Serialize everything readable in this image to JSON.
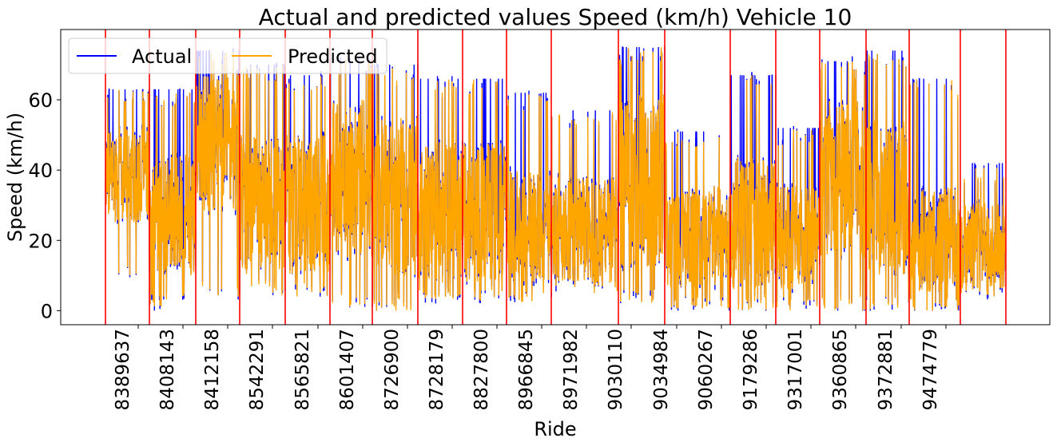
{
  "chart_data": {
    "type": "line",
    "title": "Actual and predicted values Speed (km/h) Vehicle 10",
    "xlabel": "Ride",
    "ylabel": "Speed (km/h)",
    "ylim": [
      -4,
      80
    ],
    "yticks": [
      0,
      20,
      40,
      60
    ],
    "grid": false,
    "legend_position": "upper-left",
    "categories": [
      "8389637",
      "8408143",
      "8412158",
      "8542291",
      "8565821",
      "8601407",
      "8726900",
      "8728179",
      "8827800",
      "8966845",
      "8971982",
      "9030110",
      "9034984",
      "9060267",
      "9179286",
      "9317001",
      "9360865",
      "9372881",
      "9474779"
    ],
    "series": [
      {
        "name": "Actual",
        "color": "#0000ff"
      },
      {
        "name": "Predicted",
        "color": "#ffa500"
      }
    ],
    "ride_boundary_color": "#ff0000",
    "segments": [
      {
        "ride": "8389637",
        "min": 9,
        "max": 63,
        "base": 25,
        "spread": 27
      },
      {
        "ride": "8408143",
        "min": 1,
        "max": 63,
        "base": 10,
        "spread": 35
      },
      {
        "ride": "8412158",
        "min": 4,
        "max": 74,
        "base": 28,
        "spread": 40
      },
      {
        "ride": "8542291",
        "min": 4,
        "max": 70,
        "base": 10,
        "spread": 40
      },
      {
        "ride": "8565821",
        "min": 4,
        "max": 67,
        "base": 10,
        "spread": 40
      },
      {
        "ride": "8601407",
        "min": 1,
        "max": 72,
        "base": 15,
        "spread": 45
      },
      {
        "ride": "8726900",
        "min": 0,
        "max": 70,
        "base": 10,
        "spread": 45
      },
      {
        "ride": "8728179",
        "min": 3,
        "max": 66,
        "base": 8,
        "spread": 40
      },
      {
        "ride": "8827800",
        "min": 2,
        "max": 66,
        "base": 8,
        "spread": 40
      },
      {
        "ride": "8966845",
        "min": 2,
        "max": 62,
        "base": 8,
        "spread": 32
      },
      {
        "ride": "8971982",
        "min": 5,
        "max": 57,
        "base": 8,
        "spread": 30
      },
      {
        "ride": "9030110",
        "min": 2,
        "max": 75,
        "base": 12,
        "spread": 50
      },
      {
        "ride": "9034984",
        "min": 0,
        "max": 51,
        "base": 6,
        "spread": 30
      },
      {
        "ride": "9060267",
        "min": 0,
        "max": 67,
        "base": 6,
        "spread": 38
      },
      {
        "ride": "9179286",
        "min": 0,
        "max": 52,
        "base": 6,
        "spread": 30
      },
      {
        "ride": "9317001",
        "min": 0,
        "max": 71,
        "base": 15,
        "spread": 45
      },
      {
        "ride": "9360865",
        "min": 0,
        "max": 74,
        "base": 10,
        "spread": 45
      },
      {
        "ride": "9372881",
        "min": 0,
        "max": 66,
        "base": 5,
        "spread": 30
      },
      {
        "ride": "9474779",
        "min": 4,
        "max": 42,
        "base": 6,
        "spread": 25
      }
    ]
  }
}
